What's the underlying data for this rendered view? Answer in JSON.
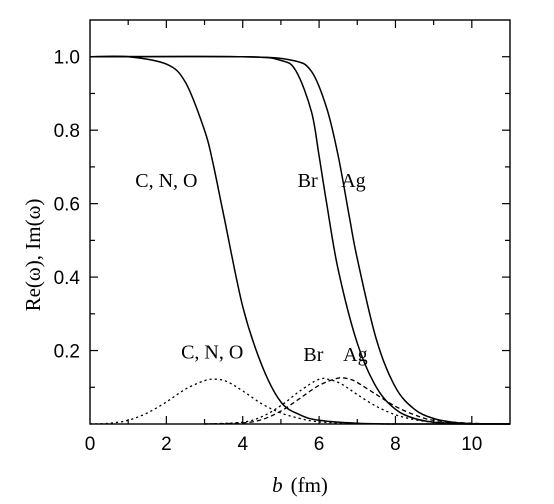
{
  "chart_data": {
    "type": "line",
    "xlabel_italic": "b",
    "xlabel_unit": "(fm)",
    "ylabel": "Re(ω), Im(ω)",
    "xlim": [
      0,
      11
    ],
    "ylim": [
      0,
      1.1
    ],
    "x_ticks": [
      0,
      2,
      4,
      6,
      8,
      10
    ],
    "y_ticks": [
      0.2,
      0.4,
      0.6,
      0.8,
      1.0
    ],
    "y_tick_labels": [
      "0.2",
      "0.4",
      "0.6",
      "0.8",
      "1.0"
    ],
    "series": [
      {
        "name": "C, N, O",
        "part": "Re",
        "style": "solid",
        "x": [
          0,
          1,
          2,
          2.5,
          3,
          3.2,
          3.5,
          4,
          4.5,
          5,
          5.5,
          6,
          7,
          8,
          11
        ],
        "y": [
          1.0,
          1.0,
          0.98,
          0.93,
          0.8,
          0.72,
          0.57,
          0.32,
          0.16,
          0.06,
          0.025,
          0.01,
          0.002,
          0,
          0
        ]
      },
      {
        "name": "Br",
        "part": "Re",
        "style": "solid",
        "x": [
          0,
          4,
          5,
          5.4,
          5.8,
          6.0,
          6.2,
          6.5,
          7,
          7.5,
          8,
          8.5,
          9,
          9.5,
          10,
          11
        ],
        "y": [
          1.0,
          1.0,
          0.99,
          0.96,
          0.85,
          0.73,
          0.6,
          0.42,
          0.22,
          0.1,
          0.04,
          0.015,
          0.005,
          0.002,
          0,
          0
        ]
      },
      {
        "name": "Ag",
        "part": "Re",
        "style": "solid",
        "x": [
          0,
          4,
          5.3,
          5.8,
          6.2,
          6.5,
          6.8,
          7,
          7.5,
          8,
          8.5,
          9,
          9.5,
          10,
          11
        ],
        "y": [
          1.0,
          1.0,
          0.99,
          0.96,
          0.86,
          0.73,
          0.56,
          0.45,
          0.23,
          0.1,
          0.04,
          0.015,
          0.005,
          0.001,
          0
        ]
      },
      {
        "name": "C, N, O",
        "part": "Im",
        "style": "dotted",
        "x": [
          0,
          0.5,
          1,
          1.5,
          2,
          2.5,
          3,
          3.3,
          3.6,
          4,
          4.5,
          5,
          5.5,
          6,
          7,
          8
        ],
        "y": [
          0,
          0.002,
          0.01,
          0.03,
          0.06,
          0.095,
          0.118,
          0.122,
          0.115,
          0.09,
          0.055,
          0.03,
          0.015,
          0.006,
          0.001,
          0
        ]
      },
      {
        "name": "Br",
        "part": "Im",
        "style": "dotted",
        "x": [
          3,
          4,
          4.5,
          5,
          5.5,
          6,
          6.3,
          6.6,
          7,
          7.5,
          8,
          8.5,
          9,
          10,
          11
        ],
        "y": [
          0,
          0.005,
          0.02,
          0.05,
          0.09,
          0.122,
          0.12,
          0.108,
          0.08,
          0.048,
          0.025,
          0.012,
          0.005,
          0.001,
          0
        ]
      },
      {
        "name": "Ag",
        "part": "Im",
        "style": "dashed",
        "x": [
          3,
          4,
          4.5,
          5,
          5.5,
          6,
          6.5,
          6.8,
          7,
          7.5,
          8,
          8.5,
          9,
          10,
          11
        ],
        "y": [
          0,
          0.003,
          0.012,
          0.035,
          0.07,
          0.105,
          0.125,
          0.122,
          0.113,
          0.08,
          0.048,
          0.025,
          0.01,
          0.002,
          0
        ]
      }
    ],
    "annotations": [
      {
        "text": "C, N, O",
        "x": 2.0,
        "y": 0.645
      },
      {
        "text": "Br",
        "x": 5.7,
        "y": 0.645
      },
      {
        "text": "Ag",
        "x": 6.9,
        "y": 0.645
      },
      {
        "text": "C, N, O",
        "x": 3.2,
        "y": 0.178
      },
      {
        "text": "Br",
        "x": 5.85,
        "y": 0.172
      },
      {
        "text": "Ag",
        "x": 6.95,
        "y": 0.172
      }
    ]
  }
}
